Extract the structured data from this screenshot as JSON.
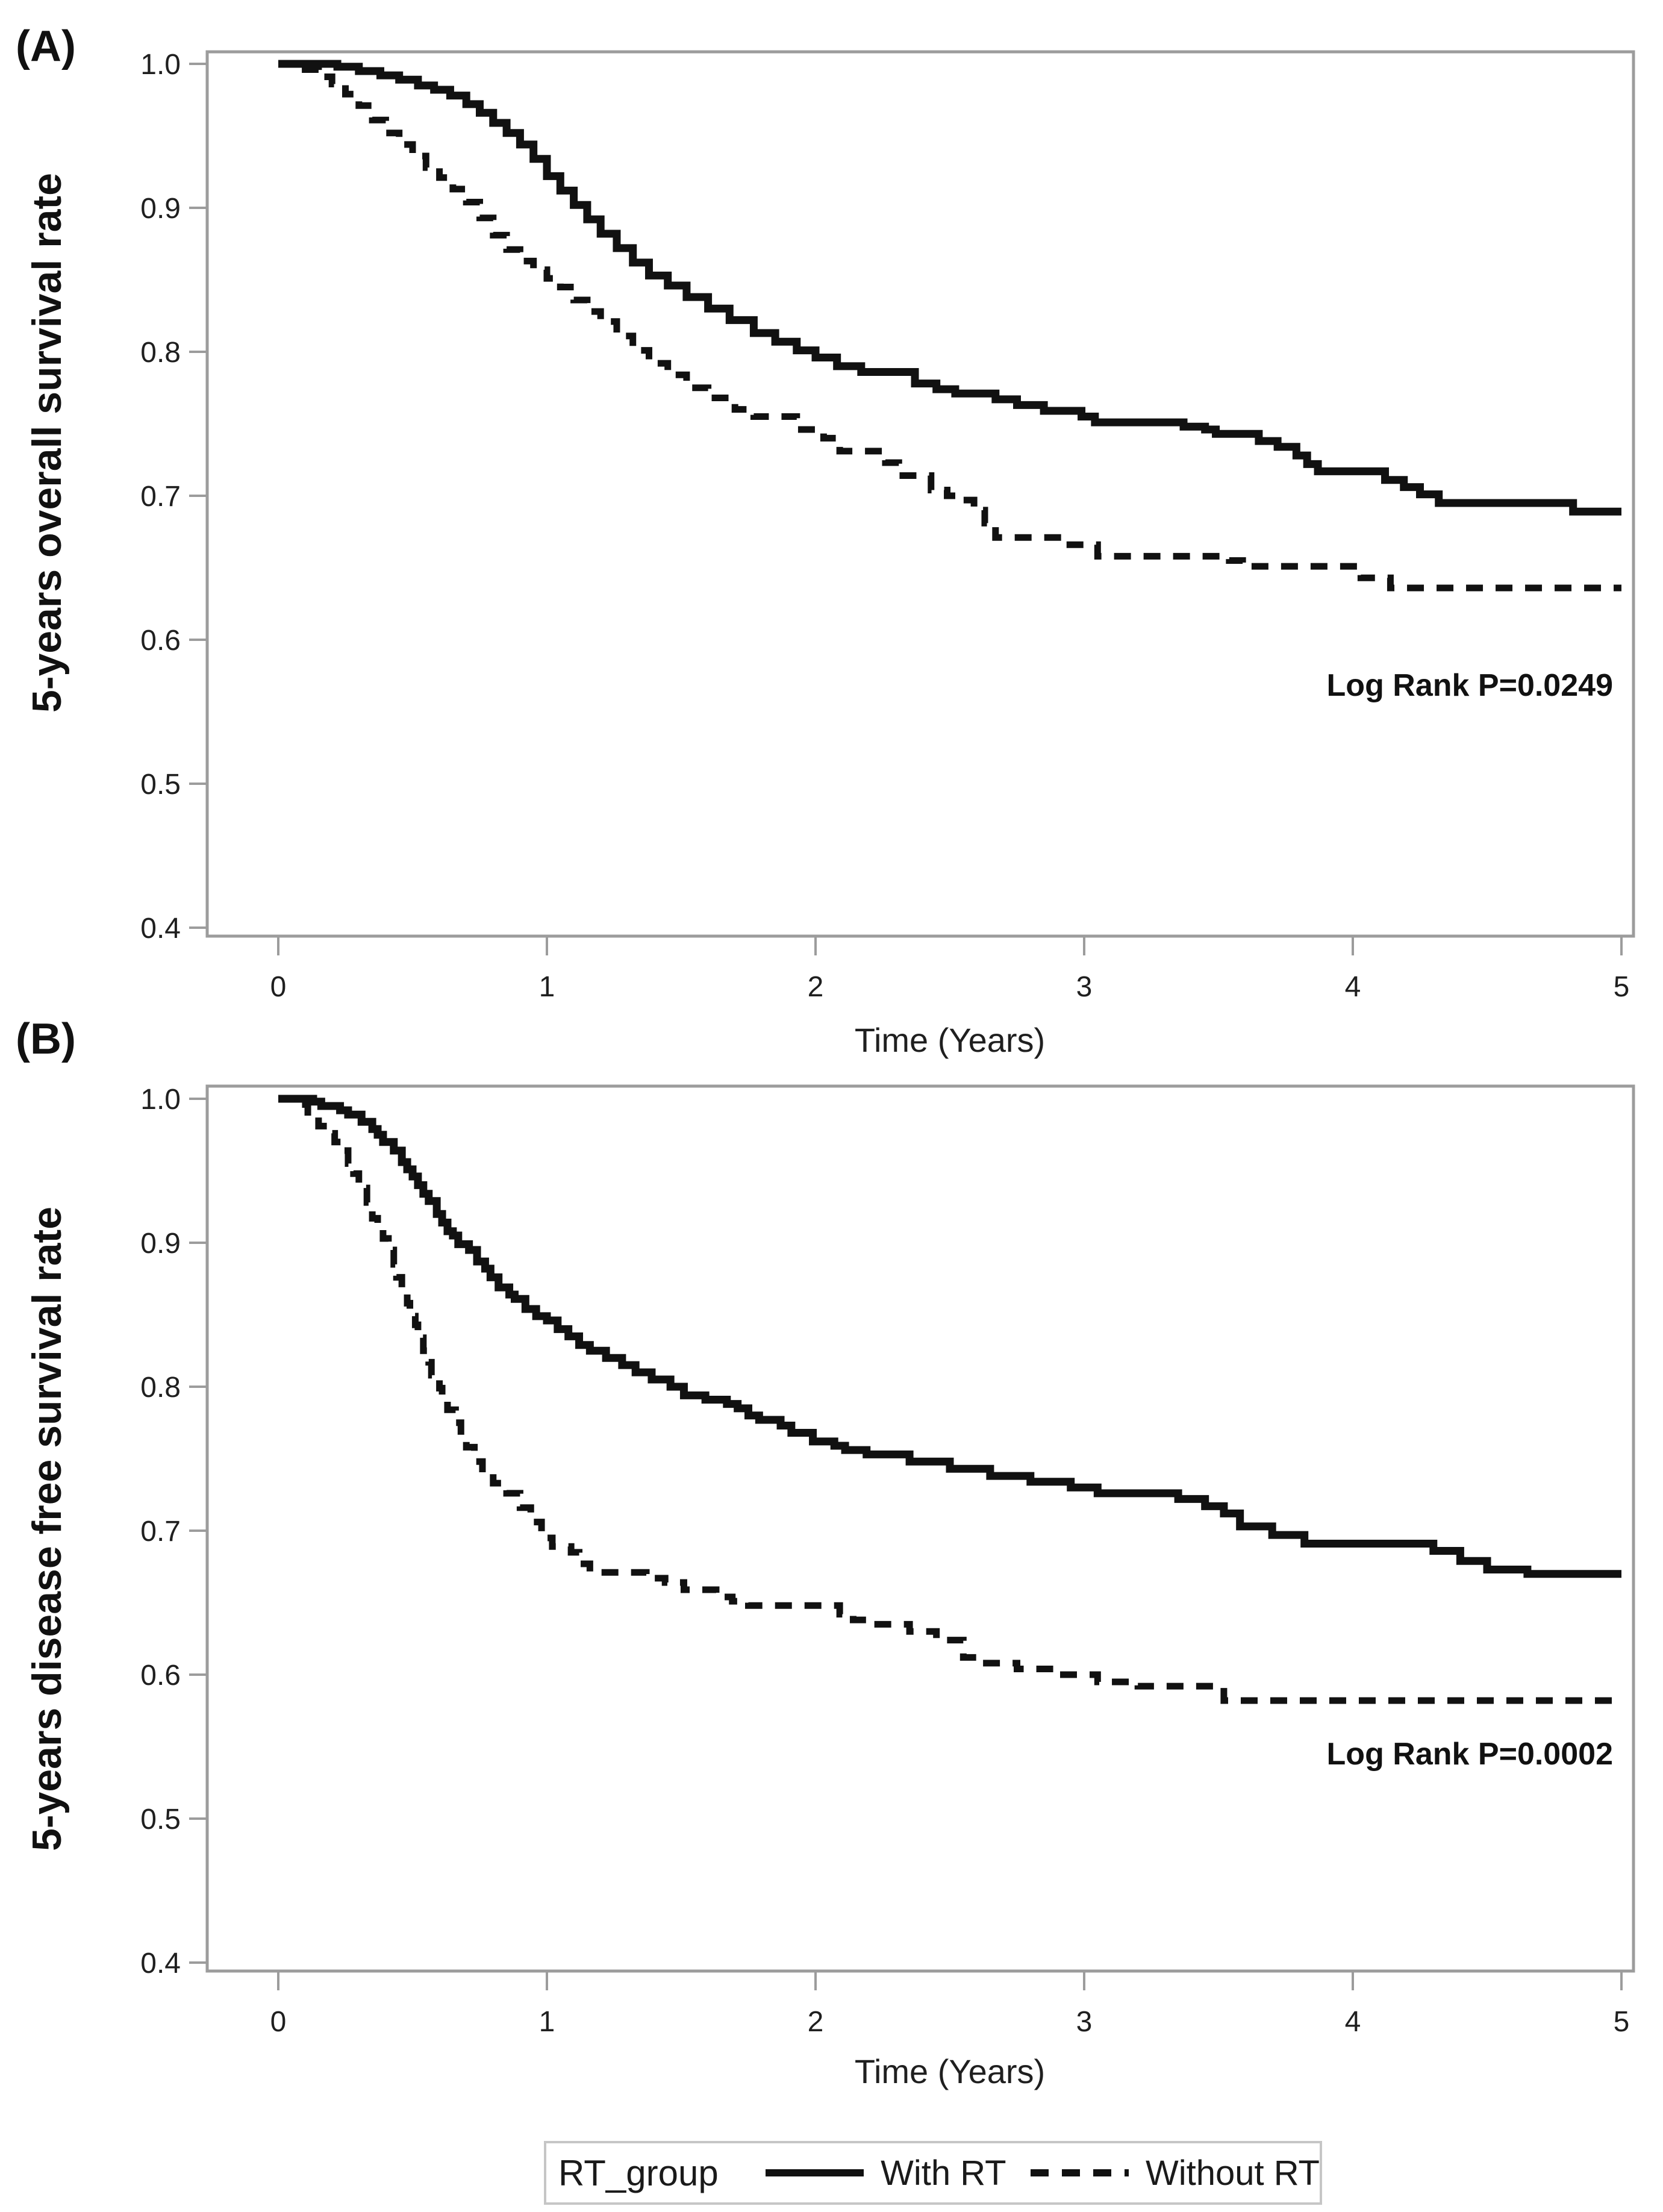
{
  "legend": {
    "title": "RT_group",
    "entries": [
      {
        "label": "With RT",
        "style": "solid"
      },
      {
        "label": "Without RT",
        "style": "dashed"
      }
    ]
  },
  "colors": {
    "curve": "#111111",
    "frame": "#9c9c9c",
    "text": "#1f1f1f"
  },
  "chart_data": [
    {
      "type": "line",
      "panel_label": "(A)",
      "ylabel": "5-years overall survival rate",
      "xlabel": "Time (Years)",
      "annotation": "Log Rank P=0.0249",
      "xlim": [
        0,
        5
      ],
      "ylim": [
        0.4,
        1.0
      ],
      "xticks": [
        0,
        1,
        2,
        3,
        4,
        5
      ],
      "xtick_labels": [
        "0",
        "1",
        "2",
        "3",
        "4",
        "5"
      ],
      "yticks": [
        1.0,
        0.9,
        0.8,
        0.7,
        0.6,
        0.5,
        0.4
      ],
      "ytick_labels": [
        "1.0",
        "0.9",
        "0.8",
        "0.7",
        "0.6",
        "0.5",
        "0.4"
      ],
      "grid": false,
      "legend_position": "figure-bottom",
      "series": [
        {
          "name": "With RT",
          "style": "solid",
          "points": [
            [
              0,
              1.0
            ],
            [
              0.22,
              0.998
            ],
            [
              0.3,
              0.995
            ],
            [
              0.38,
              0.992
            ],
            [
              0.45,
              0.989
            ],
            [
              0.52,
              0.985
            ],
            [
              0.58,
              0.982
            ],
            [
              0.64,
              0.978
            ],
            [
              0.7,
              0.972
            ],
            [
              0.75,
              0.966
            ],
            [
              0.8,
              0.959
            ],
            [
              0.85,
              0.952
            ],
            [
              0.9,
              0.944
            ],
            [
              0.95,
              0.934
            ],
            [
              1.0,
              0.922
            ],
            [
              1.05,
              0.912
            ],
            [
              1.1,
              0.902
            ],
            [
              1.15,
              0.892
            ],
            [
              1.2,
              0.882
            ],
            [
              1.26,
              0.872
            ],
            [
              1.32,
              0.862
            ],
            [
              1.38,
              0.853
            ],
            [
              1.45,
              0.846
            ],
            [
              1.52,
              0.838
            ],
            [
              1.6,
              0.83
            ],
            [
              1.68,
              0.822
            ],
            [
              1.77,
              0.813
            ],
            [
              1.85,
              0.807
            ],
            [
              1.93,
              0.801
            ],
            [
              2.0,
              0.796
            ],
            [
              2.08,
              0.79
            ],
            [
              2.17,
              0.786
            ],
            [
              2.37,
              0.778
            ],
            [
              2.45,
              0.774
            ],
            [
              2.52,
              0.771
            ],
            [
              2.67,
              0.767
            ],
            [
              2.75,
              0.763
            ],
            [
              2.85,
              0.759
            ],
            [
              2.99,
              0.755
            ],
            [
              3.04,
              0.751
            ],
            [
              3.37,
              0.748
            ],
            [
              3.45,
              0.746
            ],
            [
              3.49,
              0.743
            ],
            [
              3.65,
              0.738
            ],
            [
              3.72,
              0.734
            ],
            [
              3.79,
              0.728
            ],
            [
              3.83,
              0.722
            ],
            [
              3.87,
              0.717
            ],
            [
              4.12,
              0.711
            ],
            [
              4.19,
              0.706
            ],
            [
              4.25,
              0.701
            ],
            [
              4.32,
              0.695
            ],
            [
              4.82,
              0.689
            ],
            [
              5.0,
              0.689
            ]
          ]
        },
        {
          "name": "Without RT",
          "style": "dashed",
          "points": [
            [
              0,
              1.0
            ],
            [
              0.1,
              0.996
            ],
            [
              0.15,
              0.991
            ],
            [
              0.2,
              0.986
            ],
            [
              0.25,
              0.979
            ],
            [
              0.3,
              0.971
            ],
            [
              0.35,
              0.961
            ],
            [
              0.4,
              0.952
            ],
            [
              0.45,
              0.944
            ],
            [
              0.5,
              0.936
            ],
            [
              0.55,
              0.928
            ],
            [
              0.6,
              0.921
            ],
            [
              0.65,
              0.913
            ],
            [
              0.7,
              0.904
            ],
            [
              0.75,
              0.893
            ],
            [
              0.8,
              0.881
            ],
            [
              0.85,
              0.871
            ],
            [
              0.9,
              0.863
            ],
            [
              0.95,
              0.857
            ],
            [
              1.0,
              0.851
            ],
            [
              1.05,
              0.845
            ],
            [
              1.1,
              0.836
            ],
            [
              1.15,
              0.828
            ],
            [
              1.2,
              0.821
            ],
            [
              1.26,
              0.811
            ],
            [
              1.32,
              0.801
            ],
            [
              1.38,
              0.792
            ],
            [
              1.45,
              0.784
            ],
            [
              1.52,
              0.775
            ],
            [
              1.6,
              0.768
            ],
            [
              1.7,
              0.76
            ],
            [
              1.77,
              0.755
            ],
            [
              1.93,
              0.746
            ],
            [
              2.03,
              0.74
            ],
            [
              2.09,
              0.731
            ],
            [
              2.26,
              0.723
            ],
            [
              2.31,
              0.714
            ],
            [
              2.43,
              0.704
            ],
            [
              2.49,
              0.7
            ],
            [
              2.55,
              0.697
            ],
            [
              2.59,
              0.69
            ],
            [
              2.63,
              0.681
            ],
            [
              2.67,
              0.671
            ],
            [
              2.93,
              0.666
            ],
            [
              3.05,
              0.658
            ],
            [
              3.54,
              0.655
            ],
            [
              3.59,
              0.651
            ],
            [
              4.03,
              0.643
            ],
            [
              4.14,
              0.636
            ],
            [
              5.0,
              0.636
            ]
          ]
        }
      ]
    },
    {
      "type": "line",
      "panel_label": "(B)",
      "ylabel": "5-years disease free survival rate",
      "xlabel": "Time (Years)",
      "annotation": "Log Rank P=0.0002",
      "xlim": [
        0,
        5
      ],
      "ylim": [
        0.4,
        1.0
      ],
      "xticks": [
        0,
        1,
        2,
        3,
        4,
        5
      ],
      "xtick_labels": [
        "0",
        "1",
        "2",
        "3",
        "4",
        "5"
      ],
      "yticks": [
        1.0,
        0.9,
        0.8,
        0.7,
        0.6,
        0.5,
        0.4
      ],
      "ytick_labels": [
        "1.0",
        "0.9",
        "0.8",
        "0.7",
        "0.6",
        "0.5",
        "0.4"
      ],
      "grid": false,
      "legend_position": "figure-bottom",
      "series": [
        {
          "name": "With RT",
          "style": "solid",
          "points": [
            [
              0,
              1.0
            ],
            [
              0.13,
              0.998
            ],
            [
              0.16,
              0.995
            ],
            [
              0.23,
              0.992
            ],
            [
              0.26,
              0.989
            ],
            [
              0.31,
              0.984
            ],
            [
              0.35,
              0.979
            ],
            [
              0.37,
              0.975
            ],
            [
              0.39,
              0.97
            ],
            [
              0.43,
              0.964
            ],
            [
              0.46,
              0.956
            ],
            [
              0.48,
              0.951
            ],
            [
              0.5,
              0.946
            ],
            [
              0.52,
              0.94
            ],
            [
              0.54,
              0.934
            ],
            [
              0.56,
              0.929
            ],
            [
              0.59,
              0.92
            ],
            [
              0.61,
              0.914
            ],
            [
              0.63,
              0.908
            ],
            [
              0.65,
              0.905
            ],
            [
              0.67,
              0.899
            ],
            [
              0.71,
              0.895
            ],
            [
              0.74,
              0.887
            ],
            [
              0.77,
              0.882
            ],
            [
              0.79,
              0.876
            ],
            [
              0.82,
              0.869
            ],
            [
              0.86,
              0.864
            ],
            [
              0.88,
              0.861
            ],
            [
              0.92,
              0.854
            ],
            [
              0.96,
              0.849
            ],
            [
              1.0,
              0.846
            ],
            [
              1.04,
              0.84
            ],
            [
              1.08,
              0.835
            ],
            [
              1.12,
              0.829
            ],
            [
              1.16,
              0.825
            ],
            [
              1.22,
              0.82
            ],
            [
              1.28,
              0.815
            ],
            [
              1.33,
              0.81
            ],
            [
              1.39,
              0.805
            ],
            [
              1.46,
              0.8
            ],
            [
              1.51,
              0.794
            ],
            [
              1.59,
              0.791
            ],
            [
              1.67,
              0.788
            ],
            [
              1.71,
              0.785
            ],
            [
              1.75,
              0.78
            ],
            [
              1.79,
              0.777
            ],
            [
              1.87,
              0.773
            ],
            [
              1.91,
              0.768
            ],
            [
              1.99,
              0.762
            ],
            [
              2.07,
              0.759
            ],
            [
              2.11,
              0.756
            ],
            [
              2.19,
              0.753
            ],
            [
              2.35,
              0.748
            ],
            [
              2.5,
              0.743
            ],
            [
              2.65,
              0.738
            ],
            [
              2.8,
              0.734
            ],
            [
              2.95,
              0.73
            ],
            [
              3.05,
              0.726
            ],
            [
              3.35,
              0.722
            ],
            [
              3.45,
              0.717
            ],
            [
              3.52,
              0.712
            ],
            [
              3.58,
              0.703
            ],
            [
              3.7,
              0.697
            ],
            [
              3.82,
              0.691
            ],
            [
              4.3,
              0.686
            ],
            [
              4.4,
              0.679
            ],
            [
              4.5,
              0.673
            ],
            [
              4.65,
              0.67
            ],
            [
              5.0,
              0.67
            ]
          ]
        },
        {
          "name": "Without RT",
          "style": "dashed",
          "points": [
            [
              0,
              1.0
            ],
            [
              0.06,
              0.996
            ],
            [
              0.11,
              0.988
            ],
            [
              0.15,
              0.981
            ],
            [
              0.19,
              0.976
            ],
            [
              0.21,
              0.97
            ],
            [
              0.24,
              0.964
            ],
            [
              0.26,
              0.955
            ],
            [
              0.28,
              0.948
            ],
            [
              0.3,
              0.938
            ],
            [
              0.33,
              0.928
            ],
            [
              0.35,
              0.917
            ],
            [
              0.37,
              0.91
            ],
            [
              0.39,
              0.903
            ],
            [
              0.41,
              0.895
            ],
            [
              0.43,
              0.885
            ],
            [
              0.44,
              0.876
            ],
            [
              0.46,
              0.867
            ],
            [
              0.48,
              0.858
            ],
            [
              0.49,
              0.849
            ],
            [
              0.51,
              0.843
            ],
            [
              0.52,
              0.834
            ],
            [
              0.54,
              0.825
            ],
            [
              0.56,
              0.817
            ],
            [
              0.57,
              0.808
            ],
            [
              0.6,
              0.799
            ],
            [
              0.61,
              0.79
            ],
            [
              0.63,
              0.784
            ],
            [
              0.66,
              0.775
            ],
            [
              0.68,
              0.766
            ],
            [
              0.7,
              0.758
            ],
            [
              0.73,
              0.748
            ],
            [
              0.76,
              0.74
            ],
            [
              0.8,
              0.733
            ],
            [
              0.85,
              0.726
            ],
            [
              0.9,
              0.716
            ],
            [
              0.94,
              0.706
            ],
            [
              0.98,
              0.695
            ],
            [
              1.02,
              0.689
            ],
            [
              1.09,
              0.685
            ],
            [
              1.12,
              0.677
            ],
            [
              1.16,
              0.671
            ],
            [
              1.37,
              0.667
            ],
            [
              1.44,
              0.664
            ],
            [
              1.51,
              0.659
            ],
            [
              1.63,
              0.654
            ],
            [
              1.69,
              0.651
            ],
            [
              1.75,
              0.648
            ],
            [
              2.09,
              0.642
            ],
            [
              2.14,
              0.638
            ],
            [
              2.19,
              0.635
            ],
            [
              2.35,
              0.63
            ],
            [
              2.45,
              0.624
            ],
            [
              2.55,
              0.612
            ],
            [
              2.62,
              0.608
            ],
            [
              2.75,
              0.604
            ],
            [
              2.9,
              0.6
            ],
            [
              3.05,
              0.595
            ],
            [
              3.2,
              0.592
            ],
            [
              3.52,
              0.582
            ],
            [
              5.0,
              0.582
            ]
          ]
        }
      ]
    }
  ]
}
